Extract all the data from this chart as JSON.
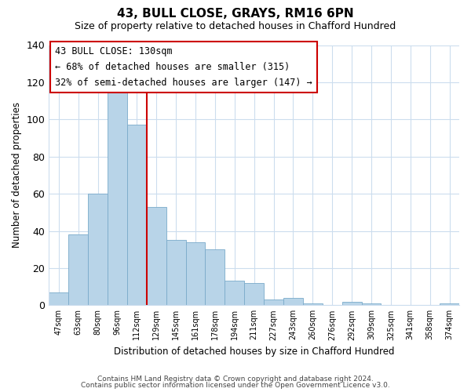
{
  "title": "43, BULL CLOSE, GRAYS, RM16 6PN",
  "subtitle": "Size of property relative to detached houses in Chafford Hundred",
  "xlabel": "Distribution of detached houses by size in Chafford Hundred",
  "ylabel": "Number of detached properties",
  "categories": [
    "47sqm",
    "63sqm",
    "80sqm",
    "96sqm",
    "112sqm",
    "129sqm",
    "145sqm",
    "161sqm",
    "178sqm",
    "194sqm",
    "211sqm",
    "227sqm",
    "243sqm",
    "260sqm",
    "276sqm",
    "292sqm",
    "309sqm",
    "325sqm",
    "341sqm",
    "358sqm",
    "374sqm"
  ],
  "values": [
    7,
    38,
    60,
    115,
    97,
    53,
    35,
    34,
    30,
    13,
    12,
    3,
    4,
    1,
    0,
    2,
    1,
    0,
    0,
    0,
    1
  ],
  "bar_color": "#b8d4e8",
  "bar_edge_color": "#7aaaca",
  "vline_color": "#cc0000",
  "annotation_title": "43 BULL CLOSE: 130sqm",
  "annotation_line1": "← 68% of detached houses are smaller (315)",
  "annotation_line2": "32% of semi-detached houses are larger (147) →",
  "ylim": [
    0,
    140
  ],
  "yticks": [
    0,
    20,
    40,
    60,
    80,
    100,
    120,
    140
  ],
  "footer1": "Contains HM Land Registry data © Crown copyright and database right 2024.",
  "footer2": "Contains public sector information licensed under the Open Government Licence v3.0.",
  "bg_color": "#ffffff",
  "grid_color": "#ccddee"
}
